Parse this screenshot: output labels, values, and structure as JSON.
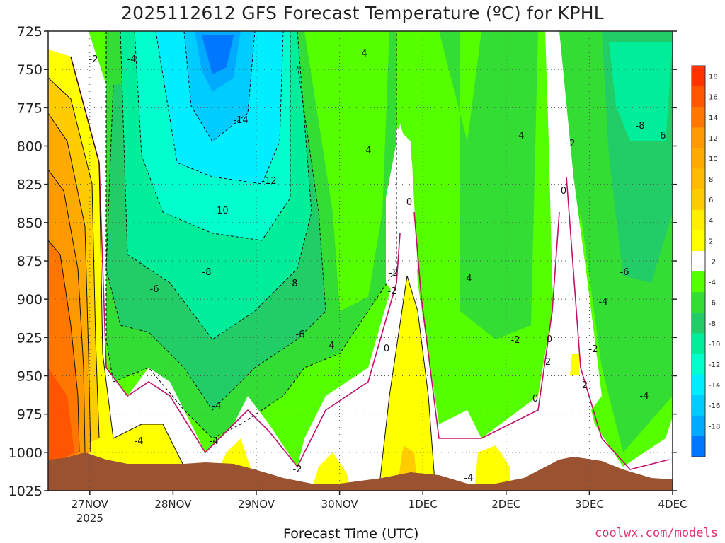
{
  "chart_data": {
    "type": "heatmap",
    "title": "2025112612 GFS Forecast Temperature (ºC) for KPHL",
    "xlabel": "Forecast Time (UTC)",
    "ylabel": "",
    "y_axis": {
      "scale": "linear",
      "reversed": true,
      "range": [
        725,
        1025
      ],
      "ticks": [
        725,
        750,
        775,
        800,
        825,
        850,
        875,
        900,
        925,
        950,
        975,
        1000,
        1025
      ]
    },
    "x_axis": {
      "range": [
        "2025-11-26 12Z",
        "2025-12-04 00Z"
      ],
      "ticks": [
        "27NOV",
        "28NOV",
        "29NOV",
        "30NOV",
        "1DEC",
        "2DEC",
        "3DEC",
        "4DEC"
      ],
      "tick_sublabel": "2025"
    },
    "grid": true,
    "colorbar": {
      "position": "right",
      "labels": [
        "18",
        "16",
        "14",
        "12",
        "10",
        "8",
        "6",
        "4",
        "2",
        "-2",
        "-4",
        "-6",
        "-8",
        "-10",
        "-12",
        "-14",
        "-16",
        "-18"
      ],
      "colors": [
        "#ff3300",
        "#ff5500",
        "#ff7700",
        "#ff9900",
        "#ffaa00",
        "#ffbb00",
        "#ffcc00",
        "#ffee00",
        "#ffff00",
        "#ffffff",
        "#55ff00",
        "#33dd33",
        "#22cc66",
        "#00ee99",
        "#00ffcc",
        "#00eeff",
        "#00ccff",
        "#00aaff",
        "#0077ff"
      ]
    },
    "contour_labels": [
      "-2",
      "-4",
      "-4",
      "-14",
      "-12",
      "-10",
      "-8",
      "-8",
      "-6",
      "-6",
      "-4",
      "-4",
      "-4",
      "-4",
      "-2",
      "-2",
      "-2",
      "0",
      "0",
      "0",
      "0",
      "0",
      "-4",
      "-4",
      "-4",
      "-2",
      "2",
      "-8",
      "-6",
      "-6",
      "-4",
      "-4",
      "-2",
      "2",
      "-2",
      "-4"
    ],
    "credit": "coolwx.com/models"
  }
}
